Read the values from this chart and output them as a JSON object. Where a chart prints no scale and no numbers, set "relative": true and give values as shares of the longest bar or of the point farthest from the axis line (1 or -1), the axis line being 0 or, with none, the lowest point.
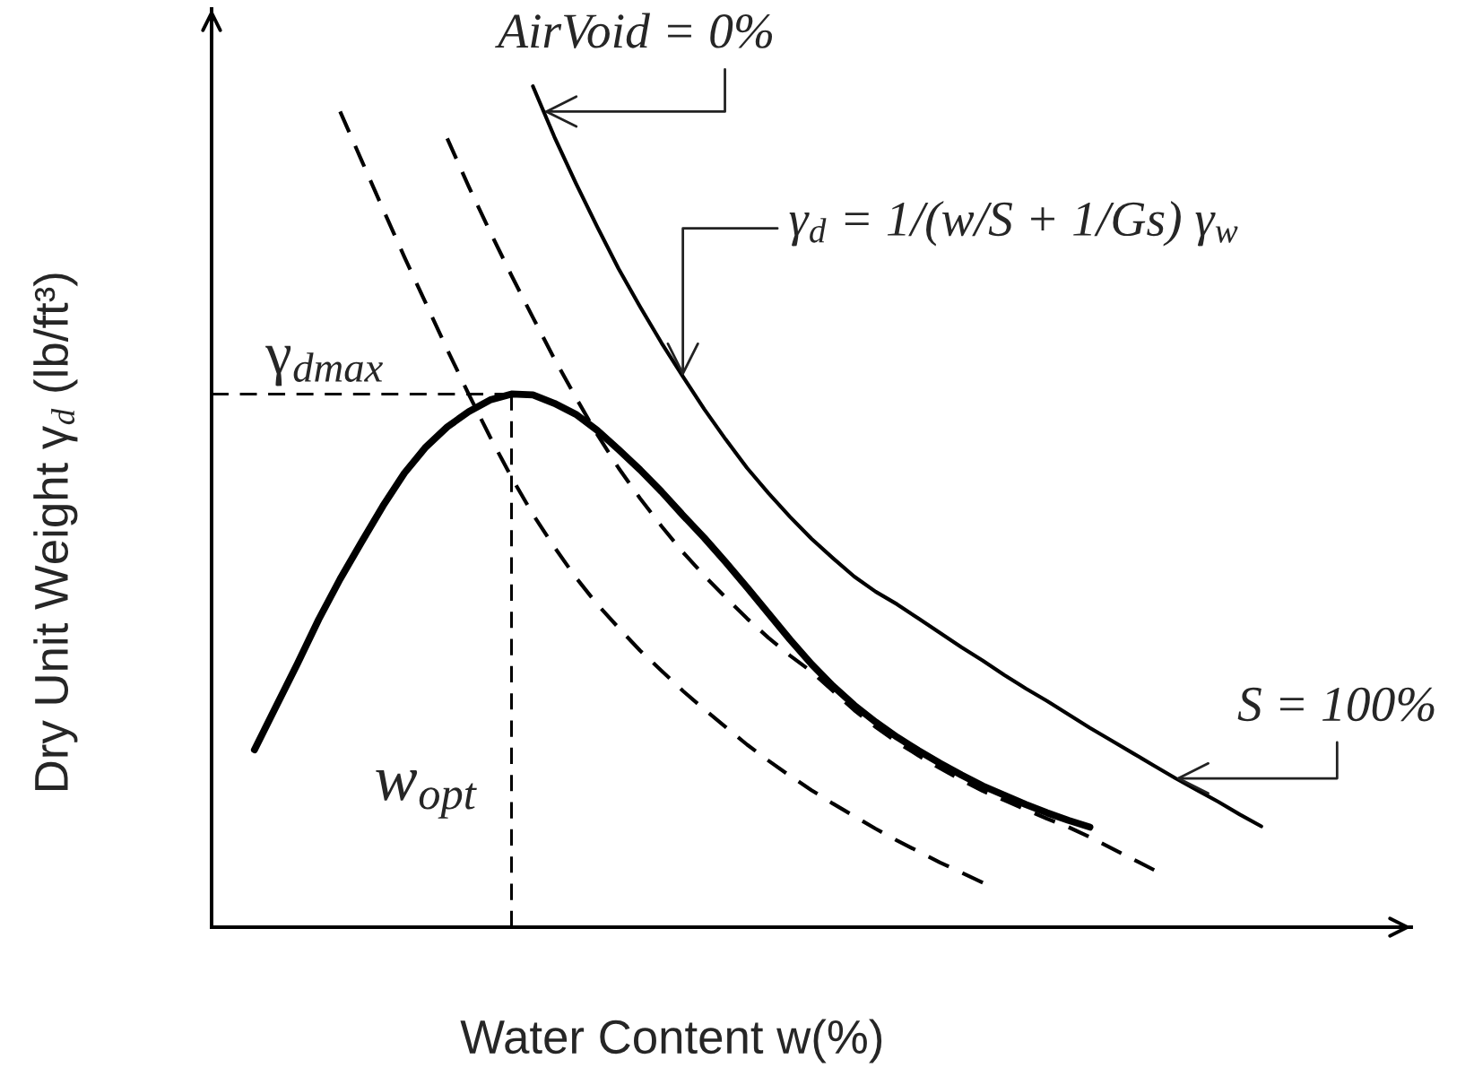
{
  "chart_data": {
    "type": "line",
    "relative": true,
    "xlabel": "Water Content w(%)",
    "ylabel": "Dry Unit Weight γ$_{d}$ (lb/ft³)",
    "categories": [
      null,
      null,
      null,
      null,
      null,
      null,
      null,
      null,
      null,
      null,
      null,
      null,
      null,
      null,
      null,
      null,
      null,
      null,
      null,
      null,
      null,
      null,
      null,
      null,
      null,
      null,
      null,
      null,
      null,
      null,
      null,
      null,
      null,
      null,
      null,
      null,
      null,
      null,
      null,
      null,
      null,
      null,
      null,
      null,
      null,
      null,
      null,
      null,
      null,
      null,
      null,
      null,
      null,
      null,
      null,
      null,
      null
    ],
    "series": [
      {
        "color": "#000000",
        "line_style": "dashed",
        "values": [
          null,
          null,
          null,
          null,
          null,
          null,
          0.97,
          0.912,
          0.854,
          0.797,
          0.742,
          0.687,
          0.634,
          0.583,
          0.535,
          0.491,
          0.452,
          0.416,
          0.384,
          0.356,
          0.329,
          0.305,
          0.281,
          0.259,
          0.238,
          0.217,
          0.198,
          0.18,
          0.163,
          0.147,
          0.132,
          0.117,
          0.103,
          0.09,
          0.077,
          0.065,
          0.053,
          null,
          null,
          null,
          null,
          null,
          null,
          null,
          null,
          null,
          null,
          null,
          null,
          null,
          null,
          null,
          null,
          null,
          null,
          null,
          null
        ]
      },
      {
        "color": "#000000",
        "line_style": "dashed",
        "values": [
          null,
          null,
          null,
          null,
          null,
          null,
          null,
          null,
          null,
          null,
          null,
          0.938,
          0.881,
          0.827,
          0.775,
          0.725,
          0.676,
          0.63,
          0.586,
          0.546,
          0.51,
          0.477,
          0.446,
          0.418,
          0.392,
          0.367,
          0.344,
          0.323,
          0.304,
          0.281,
          0.258,
          0.238,
          0.22,
          0.204,
          0.189,
          0.175,
          0.162,
          0.151,
          0.14,
          0.129,
          0.119,
          0.107,
          0.094,
          0.081,
          0.068,
          null,
          null,
          null,
          null,
          null,
          null,
          null,
          null,
          null,
          null,
          null,
          null
        ]
      },
      {
        "color": "#000000",
        "line_style": "solid",
        "values": [
          null,
          null,
          null,
          null,
          null,
          null,
          null,
          null,
          null,
          null,
          null,
          null,
          null,
          null,
          null,
          1.0,
          0.94,
          0.885,
          0.833,
          0.783,
          0.738,
          0.695,
          0.655,
          0.616,
          0.58,
          0.546,
          0.516,
          0.488,
          0.462,
          0.439,
          0.417,
          0.399,
          0.384,
          0.367,
          0.35,
          0.333,
          0.317,
          0.3,
          0.284,
          0.269,
          0.253,
          0.237,
          0.222,
          0.207,
          0.192,
          0.177,
          0.163,
          0.149,
          0.134,
          0.12,
          null,
          null,
          null,
          null,
          null,
          null,
          null
        ]
      },
      {
        "color": "#000000",
        "line_style": "solid",
        "values": [
          null,
          null,
          0.211,
          0.262,
          0.313,
          0.366,
          0.414,
          0.458,
          0.501,
          0.54,
          0.571,
          0.595,
          0.613,
          0.627,
          0.634,
          0.633,
          0.623,
          0.61,
          0.591,
          0.568,
          0.544,
          0.518,
          0.49,
          0.463,
          0.434,
          0.404,
          0.373,
          0.342,
          0.313,
          0.287,
          0.264,
          0.244,
          0.226,
          0.21,
          0.195,
          0.181,
          0.168,
          0.157,
          0.146,
          0.136,
          0.127,
          0.119,
          null,
          null,
          null,
          null,
          null,
          null,
          null,
          null,
          null,
          null,
          null,
          null,
          null,
          null,
          null
        ]
      }
    ],
    "ref_lines": [
      {
        "axis": "y",
        "value": 0.634,
        "label": "γ$_{dmax}$",
        "color": "#000000",
        "line_style": "dashed"
      }
    ],
    "annotations": [
      "AirVoid = 0%",
      "γ$_{d}$ = 1/(w/S + 1/Gs) γ$_{w}$",
      "S = 100%",
      "w$_{opt}$"
    ]
  }
}
